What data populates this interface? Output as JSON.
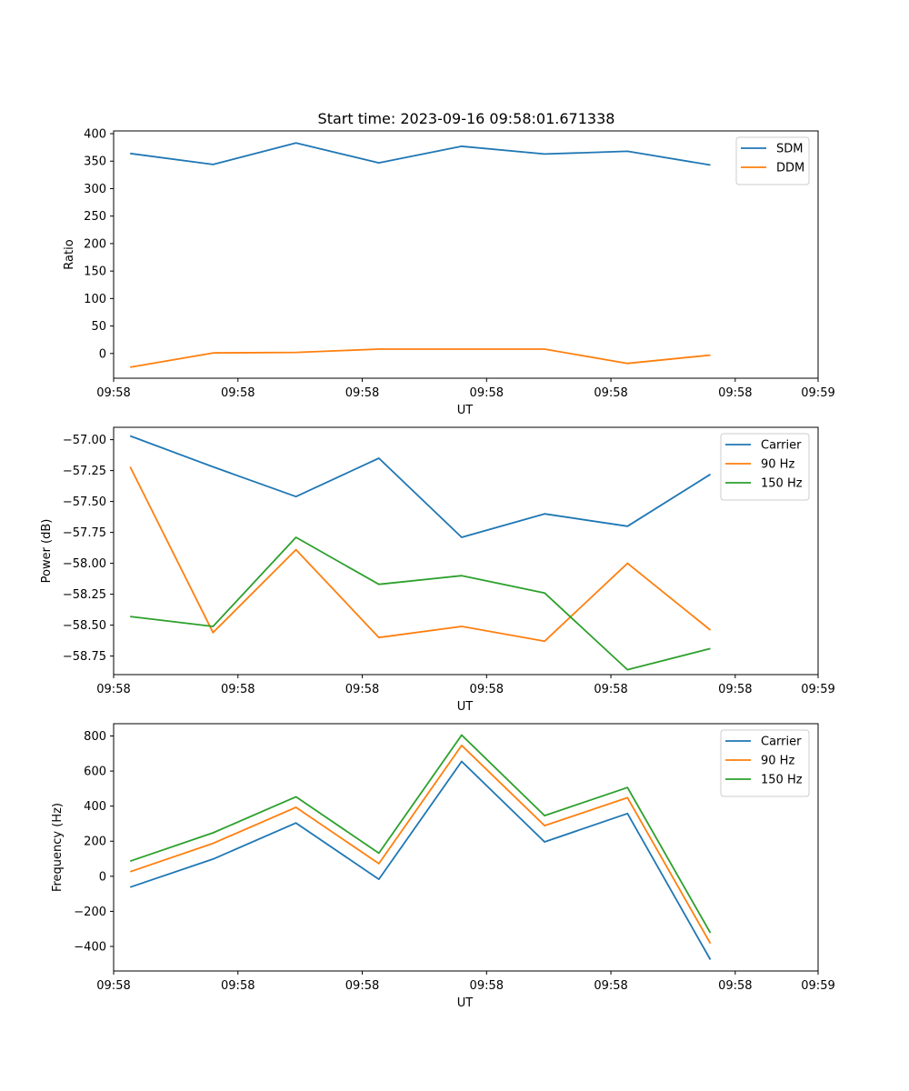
{
  "figure_title": "Start time: 2023-09-16 09:58:01.671338",
  "colors": {
    "blue": "#1f77b4",
    "orange": "#ff7f0e",
    "green": "#2ca02c"
  },
  "chart_data": [
    {
      "type": "line",
      "title": "Start time: 2023-09-16 09:58:01.671338",
      "xlabel": "UT",
      "ylabel": "Ratio",
      "x": [
        1,
        2,
        3,
        4,
        5,
        6,
        7,
        8
      ],
      "xlim": [
        0.8,
        9.3
      ],
      "x_ticks": [
        0.8,
        2.3,
        3.8,
        5.3,
        6.8,
        8.3,
        9.3
      ],
      "x_tick_labels": [
        "09:58",
        "09:58",
        "09:58",
        "09:58",
        "09:58",
        "09:58",
        "09:59"
      ],
      "ylim": [
        -45,
        405
      ],
      "y_ticks": [
        0,
        50,
        100,
        150,
        200,
        250,
        300,
        350,
        400
      ],
      "y_tick_labels": [
        "0",
        "50",
        "100",
        "150",
        "200",
        "250",
        "300",
        "350",
        "400"
      ],
      "legend_position": "top-right",
      "series": [
        {
          "name": "SDM",
          "color": "blue",
          "values": [
            364,
            344,
            383,
            347,
            377,
            363,
            368,
            343
          ]
        },
        {
          "name": "DDM",
          "color": "orange",
          "values": [
            -25,
            1,
            2,
            8,
            8,
            8,
            -18,
            -3
          ]
        }
      ]
    },
    {
      "type": "line",
      "title": "",
      "xlabel": "UT",
      "ylabel": "Power (dB)",
      "x": [
        1,
        2,
        3,
        4,
        5,
        6,
        7,
        8
      ],
      "xlim": [
        0.8,
        9.3
      ],
      "x_ticks": [
        0.8,
        2.3,
        3.8,
        5.3,
        6.8,
        8.3,
        9.3
      ],
      "x_tick_labels": [
        "09:58",
        "09:58",
        "09:58",
        "09:58",
        "09:58",
        "09:58",
        "09:59"
      ],
      "ylim": [
        -58.9,
        -56.9
      ],
      "y_ticks": [
        -58.75,
        -58.5,
        -58.25,
        -58.0,
        -57.75,
        -57.5,
        -57.25,
        -57.0
      ],
      "y_tick_labels": [
        "−58.75",
        "−58.50",
        "−58.25",
        "−58.00",
        "−57.75",
        "−57.50",
        "−57.25",
        "−57.00"
      ],
      "legend_position": "top-right",
      "series": [
        {
          "name": "Carrier",
          "color": "blue",
          "values": [
            -56.97,
            -57.22,
            -57.46,
            -57.15,
            -57.79,
            -57.6,
            -57.7,
            -57.28
          ]
        },
        {
          "name": "90 Hz",
          "color": "orange",
          "values": [
            -57.22,
            -58.56,
            -57.89,
            -58.6,
            -58.51,
            -58.63,
            -58.0,
            -58.54
          ]
        },
        {
          "name": "150 Hz",
          "color": "green",
          "values": [
            -58.43,
            -58.51,
            -57.79,
            -58.17,
            -58.1,
            -58.24,
            -58.86,
            -58.69
          ]
        }
      ]
    },
    {
      "type": "line",
      "title": "",
      "xlabel": "UT",
      "ylabel": "Frequency (Hz)",
      "x": [
        1,
        2,
        3,
        4,
        5,
        6,
        7,
        8
      ],
      "xlim": [
        0.8,
        9.3
      ],
      "x_ticks": [
        0.8,
        2.3,
        3.8,
        5.3,
        6.8,
        8.3,
        9.3
      ],
      "x_tick_labels": [
        "09:58",
        "09:58",
        "09:58",
        "09:58",
        "09:58",
        "09:58",
        "09:59"
      ],
      "ylim": [
        -540,
        870
      ],
      "y_ticks": [
        -400,
        -200,
        0,
        200,
        400,
        600,
        800
      ],
      "y_tick_labels": [
        "−400",
        "−200",
        "0",
        "200",
        "400",
        "600",
        "800"
      ],
      "legend_position": "top-right",
      "series": [
        {
          "name": "Carrier",
          "color": "blue",
          "values": [
            -62,
            98,
            304,
            -17,
            655,
            196,
            358,
            -475
          ]
        },
        {
          "name": "90 Hz",
          "color": "orange",
          "values": [
            26,
            188,
            393,
            72,
            746,
            289,
            448,
            -383
          ]
        },
        {
          "name": "150 Hz",
          "color": "green",
          "values": [
            86,
            248,
            453,
            132,
            805,
            346,
            506,
            -323
          ]
        }
      ]
    }
  ]
}
